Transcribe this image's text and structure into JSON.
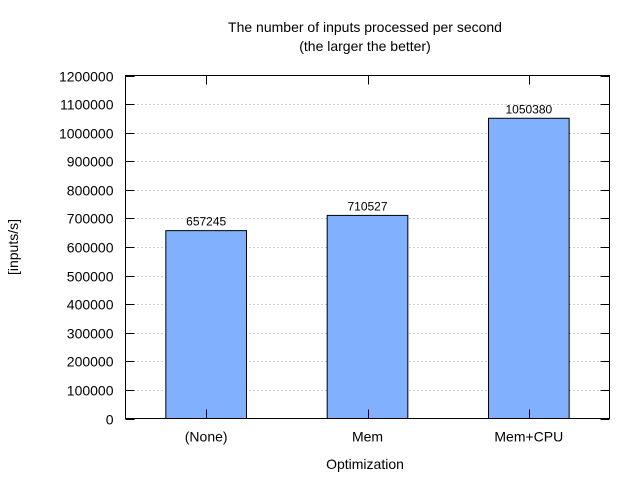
{
  "chart_data": {
    "type": "bar",
    "title": "The number of inputs processed per second",
    "subtitle": "(the larger the better)",
    "xlabel": "Optimization",
    "ylabel": "[inputs/s]",
    "categories": [
      "(None)",
      "Mem",
      "Mem+CPU"
    ],
    "values": [
      657245,
      710527,
      1050380
    ],
    "data_labels": [
      "657245",
      "710527",
      "1050380"
    ],
    "ylim": [
      0,
      1200000
    ],
    "yticks": [
      0,
      100000,
      200000,
      300000,
      400000,
      500000,
      600000,
      700000,
      800000,
      900000,
      1000000,
      1100000,
      1200000
    ],
    "ytick_labels": [
      "0",
      "100000",
      "200000",
      "300000",
      "400000",
      "500000",
      "600000",
      "700000",
      "800000",
      "900000",
      "1000000",
      "1100000",
      "1200000"
    ],
    "grid": true,
    "bar_color": "#80b0ff",
    "bar_edge_color": "#000000"
  }
}
